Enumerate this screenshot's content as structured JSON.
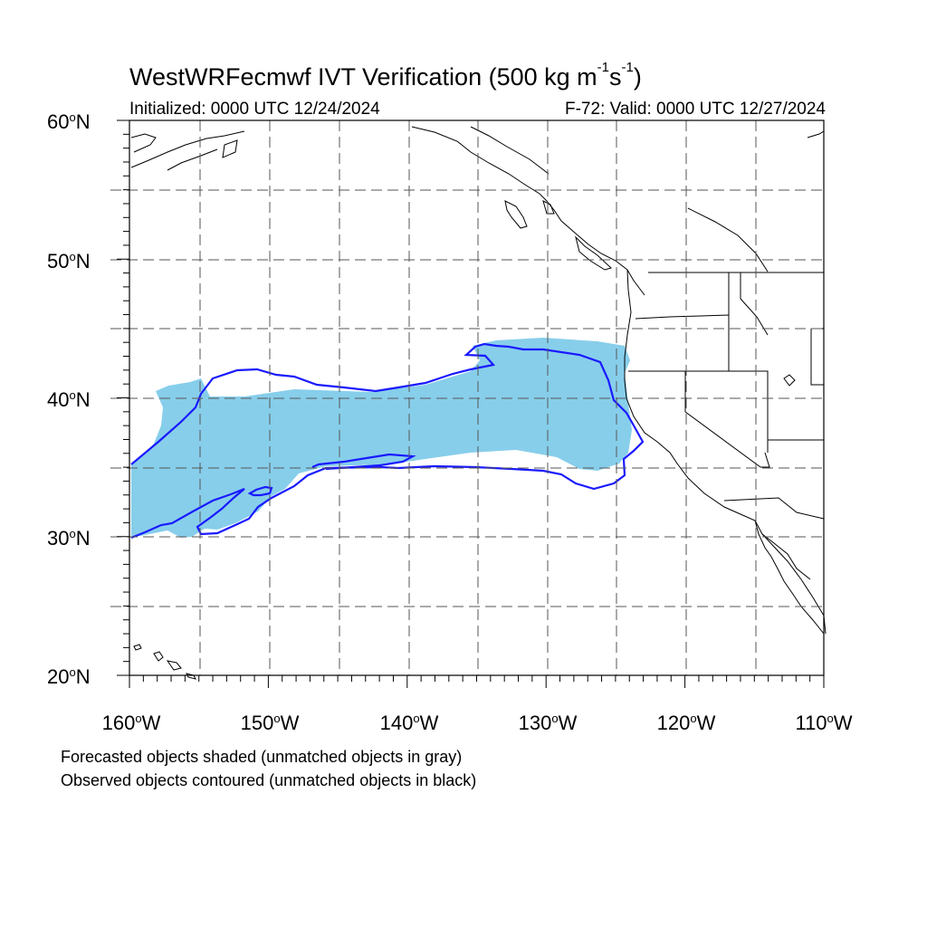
{
  "map": {
    "title_prefix": "WestWRFecmwf IVT Verification (500 kg m",
    "title_exp1": "-1",
    "title_mid": "s",
    "title_exp2": "-1",
    "title_suffix": ")",
    "initialized": "Initialized: 0000 UTC 12/24/2024",
    "valid": "F-72: Valid: 0000 UTC 12/27/2024",
    "projection_extent": {
      "lon_min": -160,
      "lon_max": -110,
      "lat_min": 20,
      "lat_max": 60
    },
    "grid": "dashed every 5 degrees",
    "lat_labels": [
      {
        "value": "60",
        "suffix": "N"
      },
      {
        "value": "50",
        "suffix": "N"
      },
      {
        "value": "40",
        "suffix": "N"
      },
      {
        "value": "30",
        "suffix": "N"
      },
      {
        "value": "20",
        "suffix": "N"
      }
    ],
    "lon_labels": [
      {
        "value": "160",
        "suffix": "W"
      },
      {
        "value": "150",
        "suffix": "W"
      },
      {
        "value": "140",
        "suffix": "W"
      },
      {
        "value": "130",
        "suffix": "W"
      },
      {
        "value": "120",
        "suffix": "W"
      },
      {
        "value": "110",
        "suffix": "W"
      }
    ],
    "degree_symbol": "o",
    "forecast_fill_color": "#87CEEB",
    "observed_contour_color": "#1a1aff",
    "coastline_color": "#000000"
  },
  "legend": {
    "line1": "Forecasted objects shaded (unmatched objects in gray)",
    "line2": "Observed objects contoured (unmatched objects in black)"
  }
}
